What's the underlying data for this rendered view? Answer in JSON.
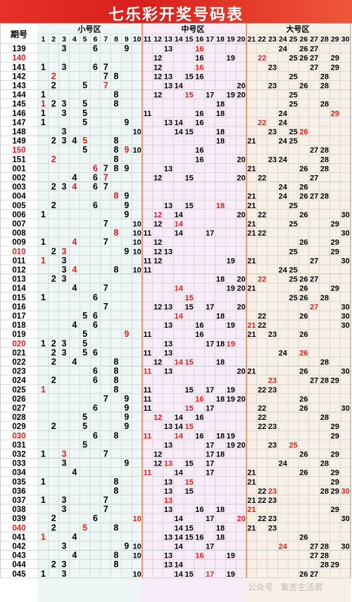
{
  "page": {
    "title": "七乐彩开奖号码表",
    "headers": {
      "period": "期号",
      "small": "小号区",
      "middle": "中号区",
      "large": "大号区"
    },
    "watermark": "公众号 · 集吉生活君",
    "colors": {
      "banner": "#e23027",
      "red_number": "#e51b1b",
      "black_number": "#000000",
      "small_zone_bg": "#eef7f5",
      "middle_zone_bg": "#f7ecf7",
      "large_zone_bg": "#f7f0e6",
      "zone_divider": "#e87a2a"
    }
  },
  "columns": [
    1,
    2,
    3,
    4,
    5,
    6,
    7,
    8,
    9,
    10,
    11,
    12,
    13,
    14,
    15,
    16,
    17,
    18,
    19,
    20,
    21,
    22,
    23,
    24,
    25,
    26,
    27,
    28,
    29,
    30
  ],
  "draws": [
    {
      "period": "139",
      "period_red": false,
      "numbers": [
        3,
        6,
        9,
        13,
        16,
        24,
        26,
        27
      ],
      "red": [
        16
      ]
    },
    {
      "period": "140",
      "period_red": true,
      "numbers": [
        12,
        16,
        19,
        22,
        25,
        26,
        27,
        29
      ],
      "red": [
        22
      ]
    },
    {
      "period": "141",
      "period_red": false,
      "numbers": [
        1,
        3,
        6,
        7,
        12,
        16,
        23,
        27,
        29
      ],
      "red": [
        16
      ]
    },
    {
      "period": "142",
      "period_red": false,
      "numbers": [
        2,
        7,
        8,
        12,
        13,
        15,
        16,
        25,
        28
      ],
      "red": [
        2
      ]
    },
    {
      "period": "143",
      "period_red": false,
      "numbers": [
        2,
        5,
        7,
        13,
        14,
        20,
        23,
        26,
        28
      ],
      "red": [
        7
      ]
    },
    {
      "period": "144",
      "period_red": false,
      "numbers": [
        1,
        8,
        12,
        15,
        17,
        19,
        20,
        25
      ],
      "red": [
        15
      ]
    },
    {
      "period": "145",
      "period_red": false,
      "numbers": [
        1,
        2,
        3,
        5,
        8,
        18,
        25,
        28
      ],
      "red": [
        1
      ]
    },
    {
      "period": "146",
      "period_red": false,
      "numbers": [
        1,
        3,
        5,
        11,
        16,
        18,
        24,
        29
      ],
      "red": [
        29
      ]
    },
    {
      "period": "147",
      "period_red": false,
      "numbers": [
        1,
        5,
        9,
        13,
        14,
        16,
        22,
        24
      ],
      "red": [
        22
      ]
    },
    {
      "period": "148",
      "period_red": false,
      "numbers": [
        3,
        10,
        14,
        15,
        18,
        23,
        25,
        26
      ],
      "red": [
        26
      ]
    },
    {
      "period": "149",
      "period_red": false,
      "numbers": [
        2,
        3,
        4,
        5,
        8,
        18,
        21,
        24,
        25
      ],
      "red": [
        5
      ]
    },
    {
      "period": "150",
      "period_red": true,
      "numbers": [
        5,
        8,
        9,
        10,
        16,
        27,
        28
      ],
      "red": [
        9
      ]
    },
    {
      "period": "151",
      "period_red": false,
      "numbers": [
        2,
        8,
        16,
        20,
        23,
        24,
        28
      ],
      "red": [
        2
      ]
    },
    {
      "period": "001",
      "period_red": false,
      "numbers": [
        6,
        7,
        8,
        9,
        13,
        21,
        26,
        28
      ],
      "red": [
        6
      ]
    },
    {
      "period": "002",
      "period_red": false,
      "numbers": [
        4,
        6,
        7,
        12,
        15,
        20,
        22,
        27
      ],
      "red": [
        7
      ]
    },
    {
      "period": "003",
      "period_red": false,
      "numbers": [
        2,
        3,
        4,
        6,
        7,
        24,
        26
      ],
      "red": [
        4
      ]
    },
    {
      "period": "004",
      "period_red": false,
      "numbers": [
        8,
        9,
        21,
        24,
        26,
        27,
        28
      ],
      "red": [
        8
      ]
    },
    {
      "period": "005",
      "period_red": false,
      "numbers": [
        2,
        6,
        9,
        13,
        15,
        18,
        21,
        25
      ],
      "red": [
        18
      ]
    },
    {
      "period": "006",
      "period_red": false,
      "numbers": [
        1,
        9,
        12,
        14,
        20,
        22,
        26,
        30
      ],
      "red": [
        12
      ]
    },
    {
      "period": "007",
      "period_red": false,
      "numbers": [
        7,
        10,
        12,
        14,
        21,
        25,
        29
      ],
      "red": [
        14
      ]
    },
    {
      "period": "008",
      "period_red": false,
      "numbers": [
        8,
        10,
        11,
        14,
        17,
        21,
        22,
        30
      ],
      "red": [
        8
      ]
    },
    {
      "period": "009",
      "period_red": false,
      "numbers": [
        1,
        4,
        7,
        10,
        12,
        26,
        29
      ],
      "red": [
        4
      ]
    },
    {
      "period": "010",
      "period_red": true,
      "numbers": [
        2,
        3,
        9,
        10,
        12,
        13,
        25,
        29
      ],
      "red": [
        3
      ]
    },
    {
      "period": "011",
      "period_red": false,
      "numbers": [
        1,
        3,
        11,
        12,
        19,
        21,
        27,
        30
      ],
      "red": [
        1
      ]
    },
    {
      "period": "012",
      "period_red": false,
      "numbers": [
        3,
        4,
        8,
        10,
        11,
        24,
        25
      ],
      "red": [
        4
      ]
    },
    {
      "period": "013",
      "period_red": false,
      "numbers": [
        2,
        3,
        18,
        20,
        22,
        25,
        26,
        27
      ],
      "red": [
        22
      ]
    },
    {
      "period": "014",
      "period_red": false,
      "numbers": [
        4,
        7,
        14,
        19,
        20,
        21,
        26,
        29
      ],
      "red": [
        14
      ]
    },
    {
      "period": "015",
      "period_red": false,
      "numbers": [
        1,
        6,
        15,
        25,
        26,
        28
      ],
      "red": [
        15
      ]
    },
    {
      "period": "016",
      "period_red": false,
      "numbers": [
        7,
        12,
        13,
        15,
        17,
        20,
        27,
        30
      ],
      "red": [
        27
      ]
    },
    {
      "period": "017",
      "period_red": false,
      "numbers": [
        5,
        6,
        14,
        18,
        22,
        26,
        30
      ],
      "red": [
        14
      ]
    },
    {
      "period": "018",
      "period_red": false,
      "numbers": [
        4,
        6,
        13,
        16,
        19,
        21,
        22,
        30
      ],
      "red": [
        21
      ]
    },
    {
      "period": "019",
      "period_red": false,
      "numbers": [
        5,
        9,
        11,
        16,
        21,
        23,
        26
      ],
      "red": [
        9
      ]
    },
    {
      "period": "020",
      "period_red": true,
      "numbers": [
        1,
        2,
        3,
        5,
        13,
        17,
        18,
        19
      ],
      "red": [
        19
      ]
    },
    {
      "period": "021",
      "period_red": false,
      "numbers": [
        2,
        3,
        5,
        6,
        11,
        13,
        24,
        26
      ],
      "red": [
        26
      ]
    },
    {
      "period": "022",
      "period_red": false,
      "numbers": [
        2,
        4,
        8,
        12,
        14,
        15,
        18,
        28
      ],
      "red": [
        14,
        15
      ]
    },
    {
      "period": "023",
      "period_red": false,
      "numbers": [
        6,
        8,
        11,
        13,
        20,
        21,
        26,
        30
      ],
      "red": [
        11
      ]
    },
    {
      "period": "024",
      "period_red": false,
      "numbers": [
        2,
        6,
        8,
        23,
        27,
        28,
        29
      ],
      "red": [
        23
      ]
    },
    {
      "period": "025",
      "period_red": false,
      "numbers": [
        1,
        8,
        11,
        15,
        17,
        19,
        22,
        23
      ],
      "red": [
        1
      ]
    },
    {
      "period": "026",
      "period_red": false,
      "numbers": [
        7,
        9,
        11,
        16,
        18,
        19,
        20,
        26
      ],
      "red": [
        16
      ]
    },
    {
      "period": "027",
      "period_red": false,
      "numbers": [
        6,
        9,
        11,
        15,
        17,
        22,
        26,
        30
      ],
      "red": [
        15
      ]
    },
    {
      "period": "028",
      "period_red": false,
      "numbers": [
        5,
        9,
        12,
        14,
        16,
        22,
        28
      ],
      "red": [
        12
      ]
    },
    {
      "period": "029",
      "period_red": false,
      "numbers": [
        2,
        5,
        9,
        13,
        14,
        15,
        22,
        23,
        29
      ],
      "red": [
        15
      ]
    },
    {
      "period": "030",
      "period_red": true,
      "numbers": [
        6,
        8,
        11,
        14,
        16,
        18,
        19,
        29
      ],
      "red": [
        11,
        14
      ]
    },
    {
      "period": "031",
      "period_red": false,
      "numbers": [
        5,
        13,
        17,
        19,
        20,
        23,
        25
      ],
      "red": [
        25
      ]
    },
    {
      "period": "032",
      "period_red": false,
      "numbers": [
        1,
        3,
        7,
        12,
        17,
        18,
        26,
        29
      ],
      "red": [
        3
      ]
    },
    {
      "period": "033",
      "period_red": false,
      "numbers": [
        3,
        9,
        12,
        13,
        15,
        17,
        24,
        28
      ],
      "red": [
        13
      ]
    },
    {
      "period": "034",
      "period_red": false,
      "numbers": [
        4,
        11,
        14,
        17,
        21,
        26,
        29
      ],
      "red": [
        11
      ]
    },
    {
      "period": "035",
      "period_red": false,
      "numbers": [
        1,
        8,
        13,
        15,
        21,
        29
      ],
      "red": [
        15
      ]
    },
    {
      "period": "036",
      "period_red": false,
      "numbers": [
        8,
        13,
        15,
        22,
        23,
        28,
        29,
        30
      ],
      "red": [
        23,
        30
      ]
    },
    {
      "period": "037",
      "period_red": false,
      "numbers": [
        1,
        3,
        7,
        13,
        21,
        22,
        23
      ],
      "red": [
        13
      ]
    },
    {
      "period": "038",
      "period_red": false,
      "numbers": [
        3,
        7,
        13,
        16,
        18,
        21,
        29
      ],
      "red": [
        21
      ]
    },
    {
      "period": "039",
      "period_red": false,
      "numbers": [
        2,
        6,
        10,
        14,
        17,
        20,
        22,
        23,
        30
      ],
      "red": [
        10,
        20
      ]
    },
    {
      "period": "040",
      "period_red": true,
      "numbers": [
        2,
        5,
        8,
        14,
        15,
        18,
        21,
        23
      ],
      "red": [
        5
      ]
    },
    {
      "period": "041",
      "period_red": false,
      "numbers": [
        1,
        4,
        13,
        14,
        15,
        16,
        18,
        26
      ],
      "red": [
        1
      ]
    },
    {
      "period": "042",
      "period_red": false,
      "numbers": [
        3,
        9,
        10,
        14,
        17,
        24,
        27,
        28,
        30
      ],
      "red": [
        24
      ]
    },
    {
      "period": "043",
      "period_red": false,
      "numbers": [
        4,
        8,
        10,
        13,
        16,
        19,
        27,
        28
      ],
      "red": [
        16
      ]
    },
    {
      "period": "044",
      "period_red": false,
      "numbers": [
        2,
        3,
        8,
        13,
        14,
        28,
        29
      ],
      "red": []
    },
    {
      "period": "045",
      "period_red": false,
      "numbers": [
        1,
        3,
        10,
        14,
        15,
        17,
        19,
        26,
        27
      ],
      "red": [
        17
      ]
    }
  ]
}
